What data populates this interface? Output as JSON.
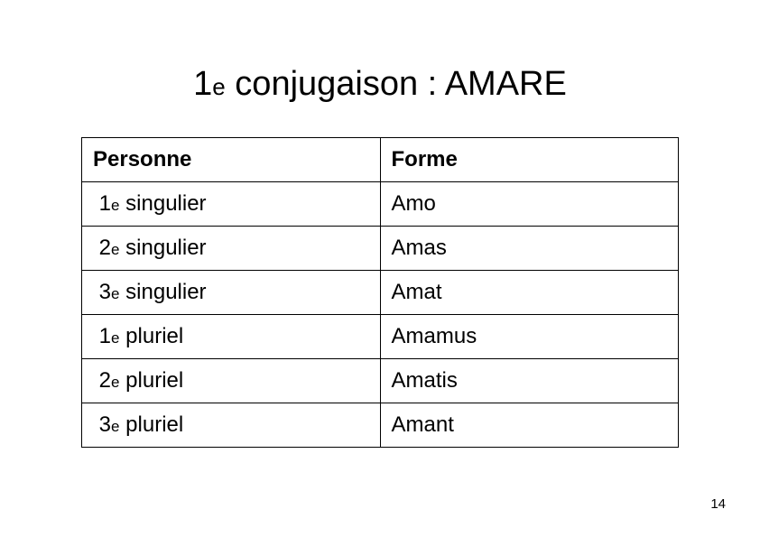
{
  "slide": {
    "title_prefix_num": "1",
    "title_prefix_ord": "e",
    "title_rest": " conjugaison : AMARE",
    "page_number": "14"
  },
  "table": {
    "headers": {
      "col1": "Personne",
      "col2": "Forme"
    },
    "rows": [
      {
        "num": "1",
        "ord": "e",
        "label": " singulier",
        "form": "Amo"
      },
      {
        "num": "2",
        "ord": "e",
        "label": " singulier",
        "form": "Amas"
      },
      {
        "num": "3",
        "ord": "e",
        "label": " singulier",
        "form": "Amat"
      },
      {
        "num": "1",
        "ord": "e",
        "label": " pluriel",
        "form": "Amamus"
      },
      {
        "num": "2",
        "ord": "e",
        "label": " pluriel",
        "form": "Amatis"
      },
      {
        "num": "3",
        "ord": "e",
        "label": " pluriel",
        "form": "Amant"
      }
    ]
  },
  "style": {
    "background_color": "#ffffff",
    "text_color": "#000000",
    "border_color": "#000000",
    "title_fontsize_pt": 38,
    "title_sub_fontsize_pt": 26,
    "cell_fontsize_pt": 24,
    "ord_sub_fontsize_pt": 17,
    "pagenum_fontsize_pt": 15,
    "font_family": "Arial"
  }
}
